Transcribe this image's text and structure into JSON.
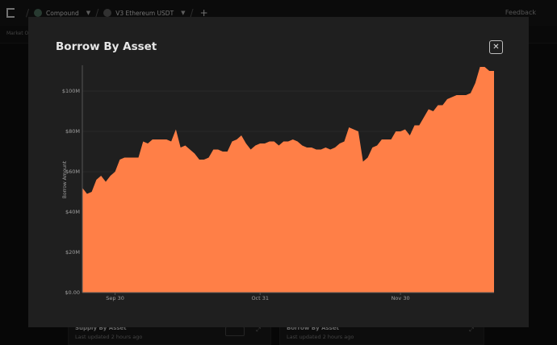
{
  "topbar": {
    "protocol": "Compound",
    "market": "V3 Ethereum USDT",
    "feedback": "Feedback",
    "sub": "Market Ov"
  },
  "cards": [
    {
      "title": "Supply By Asset",
      "updated": "Last updated 2 hours ago"
    },
    {
      "title": "Borrow By Asset",
      "updated": "Last updated 2 hours ago"
    }
  ],
  "modal": {
    "title": "Borrow By Asset",
    "close": "✕"
  },
  "chart_data": {
    "type": "area",
    "title": "",
    "ylabel": "Borrow Amount",
    "ylim": [
      0,
      112
    ],
    "yticks": [
      0,
      20,
      40,
      60,
      80,
      100
    ],
    "yticklabels": [
      "$0.00",
      "$20M",
      "$40M",
      "$60M",
      "$80M",
      "$100M"
    ],
    "xticks": [
      {
        "at": 7,
        "label": "Sep 30"
      },
      {
        "at": 38,
        "label": "Oct 31"
      },
      {
        "at": 68,
        "label": "Nov 30"
      }
    ],
    "color": "#ff7f47",
    "values": [
      52,
      49,
      50,
      56,
      58,
      55,
      58,
      60,
      66,
      67,
      67,
      67,
      67,
      75,
      74,
      76,
      76,
      76,
      76,
      75,
      81,
      72,
      73,
      71,
      69,
      66,
      66,
      67,
      71,
      71,
      70,
      70,
      75,
      76,
      78,
      74,
      71,
      73,
      74,
      74,
      75,
      75,
      73,
      75,
      75,
      76,
      75,
      73,
      72,
      72,
      71,
      71,
      72,
      71,
      72,
      74,
      75,
      82,
      81,
      80,
      65,
      67,
      72,
      73,
      76,
      76,
      76,
      80,
      80,
      81,
      78,
      83,
      83,
      87,
      91,
      90,
      93,
      93,
      96,
      97,
      98,
      98,
      98,
      99,
      104,
      112,
      112,
      110,
      110
    ]
  }
}
